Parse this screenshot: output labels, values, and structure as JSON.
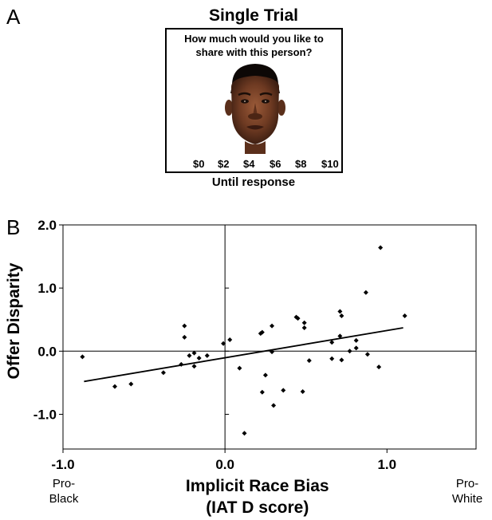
{
  "panel_a": {
    "letter": "A",
    "title": "Single Trial",
    "question": "How much would you like to share with this person?",
    "scale": [
      "$0",
      "$2",
      "$4",
      "$6",
      "$8",
      "$10"
    ],
    "caption": "Until response"
  },
  "panel_b": {
    "letter": "B",
    "anchor_left": "Pro-\nBlack",
    "anchor_right": "Pro-\nWhite"
  },
  "chart_data": {
    "type": "scatter",
    "xlabel": "Implicit Race Bias\n(IAT D score)",
    "ylabel": "Offer Disparity",
    "xlim": [
      -1.0,
      1.55
    ],
    "ylim": [
      -1.55,
      2.0
    ],
    "xticks": [
      "-1.0",
      "0.0",
      "1.0"
    ],
    "xtick_values": [
      -1.0,
      0.0,
      1.0
    ],
    "yticks": [
      "2.0",
      "1.0",
      "0.0",
      "-1.0"
    ],
    "ytick_values": [
      2.0,
      1.0,
      0.0,
      -1.0
    ],
    "grid": false,
    "points": [
      [
        -0.88,
        -0.09
      ],
      [
        -0.68,
        -0.56
      ],
      [
        -0.58,
        -0.52
      ],
      [
        -0.38,
        -0.34
      ],
      [
        -0.27,
        -0.21
      ],
      [
        -0.25,
        0.22
      ],
      [
        -0.25,
        0.4
      ],
      [
        -0.22,
        -0.07
      ],
      [
        -0.19,
        -0.03
      ],
      [
        -0.19,
        -0.24
      ],
      [
        -0.16,
        -0.11
      ],
      [
        -0.11,
        -0.07
      ],
      [
        -0.01,
        0.12
      ],
      [
        0.03,
        0.18
      ],
      [
        0.09,
        -0.27
      ],
      [
        0.12,
        -1.3
      ],
      [
        0.22,
        0.28
      ],
      [
        0.23,
        0.3
      ],
      [
        0.23,
        -0.65
      ],
      [
        0.25,
        -0.38
      ],
      [
        0.29,
        0.4
      ],
      [
        0.29,
        -0.01
      ],
      [
        0.3,
        -0.86
      ],
      [
        0.36,
        -0.62
      ],
      [
        0.44,
        0.54
      ],
      [
        0.45,
        0.52
      ],
      [
        0.49,
        0.45
      ],
      [
        0.49,
        0.37
      ],
      [
        0.48,
        -0.64
      ],
      [
        0.52,
        -0.15
      ],
      [
        0.66,
        0.14
      ],
      [
        0.66,
        -0.12
      ],
      [
        0.71,
        0.63
      ],
      [
        0.71,
        0.24
      ],
      [
        0.72,
        0.56
      ],
      [
        0.72,
        -0.14
      ],
      [
        0.77,
        0.0
      ],
      [
        0.81,
        0.05
      ],
      [
        0.81,
        0.17
      ],
      [
        0.87,
        0.93
      ],
      [
        0.88,
        -0.05
      ],
      [
        0.95,
        -0.25
      ],
      [
        0.96,
        1.64
      ],
      [
        1.11,
        0.56
      ]
    ],
    "fit_line": {
      "x": [
        -0.87,
        1.1
      ],
      "y": [
        -0.48,
        0.37
      ]
    }
  }
}
